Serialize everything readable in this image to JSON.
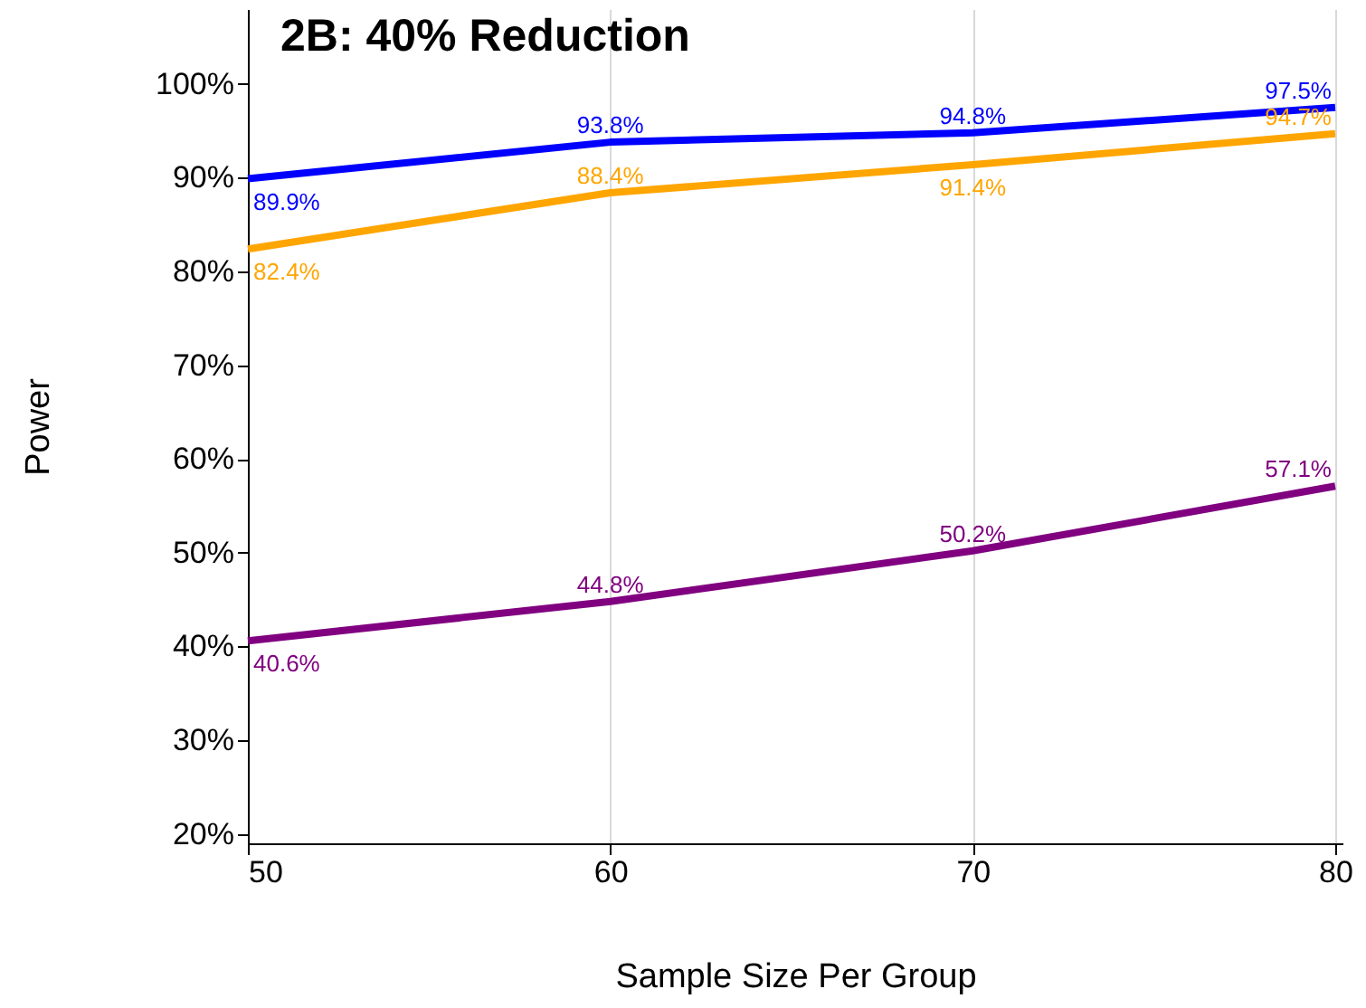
{
  "chart_data": {
    "type": "line",
    "title": "2B: 40% Reduction",
    "xlabel": "Sample Size Per Group",
    "ylabel": "Power",
    "x": [
      50,
      60,
      70,
      80
    ],
    "series": [
      {
        "color": "#0000ff",
        "values": [
          89.9,
          93.8,
          94.8,
          97.5
        ],
        "value_labels": [
          "89.9%",
          "93.8%",
          "94.8%",
          "97.5%"
        ]
      },
      {
        "color": "#ffa500",
        "values": [
          82.4,
          88.4,
          91.4,
          94.7
        ],
        "value_labels": [
          "82.4%",
          "88.4%",
          "91.4%",
          "94.7%"
        ]
      },
      {
        "color": "#800080",
        "values": [
          40.6,
          44.8,
          50.2,
          57.1
        ],
        "value_labels": [
          "40.6%",
          "44.8%",
          "50.2%",
          "57.1%"
        ]
      }
    ],
    "xlim": [
      50,
      80.2
    ],
    "xticks": [
      50,
      60,
      70,
      80
    ],
    "ylim": [
      19,
      108
    ],
    "yticks": [
      {
        "value": 20,
        "label": "20%"
      },
      {
        "value": 30,
        "label": "30%"
      },
      {
        "value": 40,
        "label": "40%"
      },
      {
        "value": 50,
        "label": "50%"
      },
      {
        "value": 60,
        "label": "60%"
      },
      {
        "value": 70,
        "label": "70%"
      },
      {
        "value": 80,
        "label": "80%"
      },
      {
        "value": 90,
        "label": "90%"
      },
      {
        "value": 100,
        "label": "100%"
      }
    ],
    "grid": "x",
    "marker": "none",
    "line_style": "solid"
  }
}
